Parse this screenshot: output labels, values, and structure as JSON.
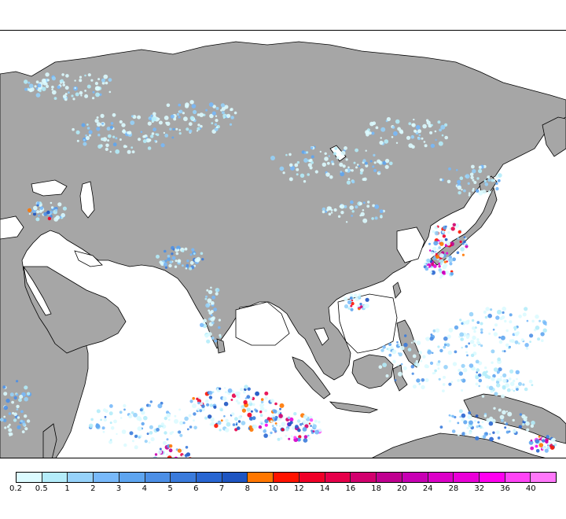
{
  "map": {
    "land_color": "#a6a6a6",
    "ocean_color": "#ffffff",
    "border_color": "#000000"
  },
  "legend": {
    "labels": [
      "0.2",
      "0.5",
      "1",
      "2",
      "3",
      "4",
      "5",
      "6",
      "7",
      "8",
      "10",
      "12",
      "14",
      "16",
      "18",
      "20",
      "24",
      "28",
      "32",
      "36",
      "40"
    ],
    "colors": [
      "#dcfbff",
      "#b4ecfa",
      "#96d2fa",
      "#78b9fa",
      "#5ea5f0",
      "#4c8fe6",
      "#3a7bdc",
      "#2866d2",
      "#1e55c2",
      "#ff7700",
      "#ff1400",
      "#f00028",
      "#e6004a",
      "#d2006e",
      "#c00090",
      "#c800b4",
      "#dc00c8",
      "#ea00d8",
      "#ff00f0",
      "#ff44f6",
      "#ff77fa"
    ]
  }
}
